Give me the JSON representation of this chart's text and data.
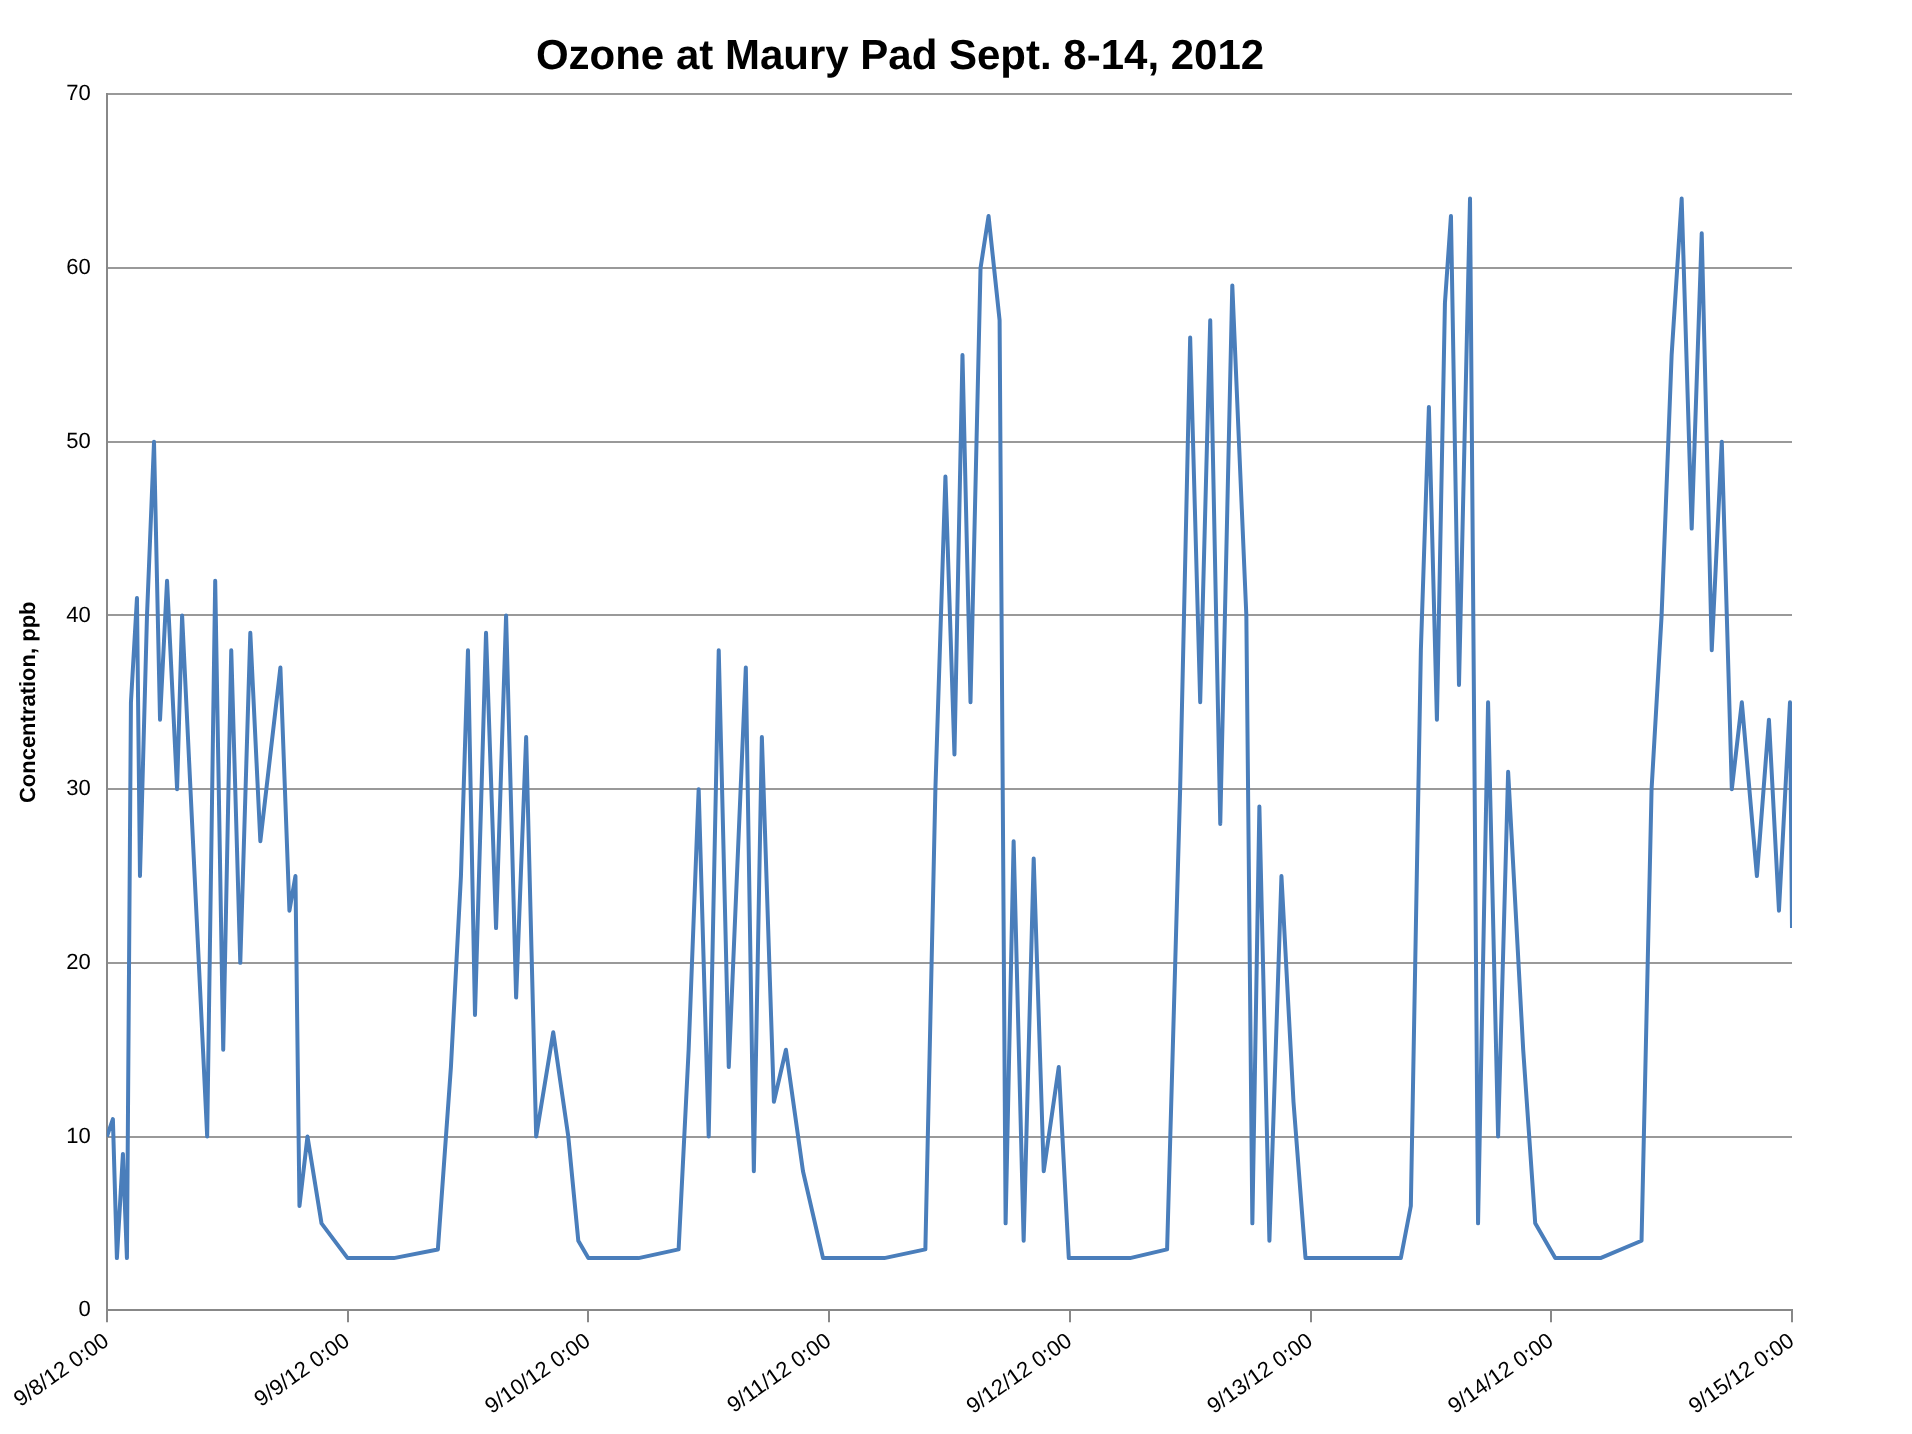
{
  "chart_data": {
    "type": "line",
    "title": "Ozone at Maury Pad Sept. 8-14, 2012",
    "ylabel": "Concentration, ppb",
    "x": [
      "2012-09-08T00:00",
      "2012-09-08T00:36",
      "2012-09-08T01:00",
      "2012-09-08T01:36",
      "2012-09-08T02:00",
      "2012-09-08T02:24",
      "2012-09-08T03:00",
      "2012-09-08T03:18",
      "2012-09-08T04:00",
      "2012-09-08T04:42",
      "2012-09-08T05:18",
      "2012-09-08T06:00",
      "2012-09-08T07:00",
      "2012-09-08T07:30",
      "2012-09-08T10:00",
      "2012-09-08T10:48",
      "2012-09-08T11:36",
      "2012-09-08T12:24",
      "2012-09-08T13:18",
      "2012-09-08T14:18",
      "2012-09-08T15:18",
      "2012-09-08T17:18",
      "2012-09-08T18:12",
      "2012-09-08T18:48",
      "2012-09-08T19:12",
      "2012-09-08T20:00",
      "2012-09-08T21:24",
      "2012-09-09T00:00",
      "2012-09-09T04:36",
      "2012-09-09T09:00",
      "2012-09-09T10:18",
      "2012-09-09T11:18",
      "2012-09-09T12:00",
      "2012-09-09T12:42",
      "2012-09-09T13:48",
      "2012-09-09T14:48",
      "2012-09-09T15:48",
      "2012-09-09T16:48",
      "2012-09-09T17:48",
      "2012-09-09T18:48",
      "2012-09-09T20:30",
      "2012-09-09T22:00",
      "2012-09-09T23:00",
      "2012-09-10T00:00",
      "2012-09-10T05:00",
      "2012-09-10T09:00",
      "2012-09-10T10:00",
      "2012-09-10T11:00",
      "2012-09-10T12:00",
      "2012-09-10T13:00",
      "2012-09-10T14:00",
      "2012-09-10T15:42",
      "2012-09-10T16:30",
      "2012-09-10T17:18",
      "2012-09-10T18:30",
      "2012-09-10T19:42",
      "2012-09-10T21:24",
      "2012-09-10T23:24",
      "2012-09-11T05:30",
      "2012-09-11T09:36",
      "2012-09-11T10:36",
      "2012-09-11T11:36",
      "2012-09-11T12:30",
      "2012-09-11T13:18",
      "2012-09-11T14:06",
      "2012-09-11T15:06",
      "2012-09-11T15:54",
      "2012-09-11T17:00",
      "2012-09-11T17:36",
      "2012-09-11T18:24",
      "2012-09-11T19:24",
      "2012-09-11T20:24",
      "2012-09-11T21:24",
      "2012-09-11T22:54",
      "2012-09-11T23:54",
      "2012-09-12T06:00",
      "2012-09-12T09:42",
      "2012-09-12T11:00",
      "2012-09-12T12:00",
      "2012-09-12T13:00",
      "2012-09-12T14:00",
      "2012-09-12T15:00",
      "2012-09-12T16:12",
      "2012-09-12T17:36",
      "2012-09-12T18:12",
      "2012-09-12T18:54",
      "2012-09-12T19:54",
      "2012-09-12T21:06",
      "2012-09-12T22:18",
      "2012-09-12T23:30",
      "2012-09-13T04:24",
      "2012-09-13T09:00",
      "2012-09-13T10:00",
      "2012-09-13T11:00",
      "2012-09-13T11:48",
      "2012-09-13T12:36",
      "2012-09-13T13:24",
      "2012-09-13T14:00",
      "2012-09-13T14:48",
      "2012-09-13T15:54",
      "2012-09-13T16:42",
      "2012-09-13T17:42",
      "2012-09-13T18:42",
      "2012-09-13T19:42",
      "2012-09-13T21:12",
      "2012-09-13T22:24",
      "2012-09-14T00:24",
      "2012-09-14T04:54",
      "2012-09-14T09:00",
      "2012-09-14T10:00",
      "2012-09-14T11:00",
      "2012-09-14T12:00",
      "2012-09-14T13:00",
      "2012-09-14T14:00",
      "2012-09-14T15:00",
      "2012-09-14T16:00",
      "2012-09-14T17:00",
      "2012-09-14T18:00",
      "2012-09-14T19:00",
      "2012-09-14T20:30",
      "2012-09-14T21:42",
      "2012-09-14T22:42",
      "2012-09-14T23:48",
      "2012-09-15T00:00"
    ],
    "series": [
      {
        "color": "#4a7ebb",
        "values": [
          10,
          11,
          3,
          9,
          3,
          35,
          41,
          25,
          40,
          50,
          34,
          42,
          30,
          40,
          10,
          42,
          15,
          38,
          20,
          39,
          27,
          37,
          23,
          25,
          6,
          10,
          5,
          3,
          3,
          3.5,
          14,
          25,
          38,
          17,
          39,
          22,
          40,
          18,
          33,
          10,
          16,
          10,
          4,
          3,
          3,
          3.5,
          15,
          30,
          10,
          38,
          14,
          37,
          8,
          33,
          12,
          15,
          8,
          3,
          3,
          3.5,
          30,
          48,
          32,
          55,
          35,
          60,
          63,
          57,
          5,
          27,
          4,
          26,
          8,
          14,
          3,
          3,
          3.5,
          30,
          56,
          35,
          57,
          28,
          59,
          40,
          5,
          29,
          4,
          25,
          12,
          3,
          3,
          3,
          6,
          38,
          52,
          34,
          58,
          63,
          36,
          64,
          5,
          35,
          10,
          31,
          15,
          5,
          3,
          3,
          4,
          30,
          40,
          55,
          64,
          45,
          62,
          38,
          50,
          30,
          35,
          25,
          34,
          23,
          35,
          22
        ]
      }
    ],
    "xlim": [
      "2012-09-08T00:00",
      "2012-09-15T00:00"
    ],
    "xticks": [
      {
        "value": "2012-09-08T00:00",
        "label": "9/8/12 0:00"
      },
      {
        "value": "2012-09-09T00:00",
        "label": "9/9/12 0:00"
      },
      {
        "value": "2012-09-10T00:00",
        "label": "9/10/12 0:00"
      },
      {
        "value": "2012-09-11T00:00",
        "label": "9/11/12 0:00"
      },
      {
        "value": "2012-09-12T00:00",
        "label": "9/12/12 0:00"
      },
      {
        "value": "2012-09-13T00:00",
        "label": "9/13/12 0:00"
      },
      {
        "value": "2012-09-14T00:00",
        "label": "9/14/12 0:00"
      },
      {
        "value": "2012-09-15T00:00",
        "label": "9/15/12 0:00"
      }
    ],
    "ylim": [
      0,
      70
    ],
    "yticks": [
      0,
      10,
      20,
      30,
      40,
      50,
      60,
      70
    ],
    "grid": "y",
    "legend": false,
    "marker": "none",
    "line_style": "solid"
  }
}
